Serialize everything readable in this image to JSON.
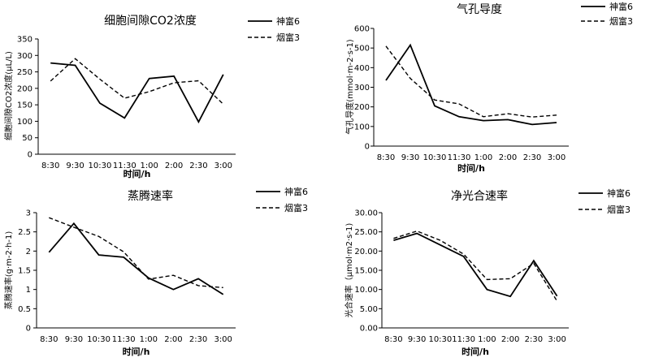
{
  "chart_data": [
    {
      "type": "line",
      "title": "细胞间隙CO2浓度",
      "xlabel": "时间/h",
      "ylabel": "细胞间隙CO2浓度(μL/L)",
      "categories": [
        "8:30",
        "9:30",
        "10:30",
        "11:30",
        "1:00",
        "2:00",
        "2:30",
        "3:00"
      ],
      "ylim": [
        0,
        350
      ],
      "ytick_step": 50,
      "ytick_labels": [
        "0",
        "50",
        "100",
        "150",
        "200",
        "250",
        "300",
        "350"
      ],
      "legend_position": "top-right",
      "series": [
        {
          "name": "神富6",
          "style": "solid",
          "values": [
            277,
            270,
            155,
            110,
            230,
            237,
            98,
            242
          ]
        },
        {
          "name": "烟富3",
          "style": "dashed",
          "values": [
            222,
            290,
            228,
            170,
            190,
            217,
            223,
            152
          ]
        }
      ]
    },
    {
      "type": "line",
      "title": "气孔导度",
      "xlabel": "时间/h",
      "ylabel": "气孔导度(mmol·m-2·s-1)",
      "categories": [
        "8:30",
        "9:30",
        "10:30",
        "11:30",
        "1:00",
        "2:00",
        "2:30",
        "3:00"
      ],
      "ylim": [
        0,
        600
      ],
      "ytick_step": 100,
      "ytick_labels": [
        "0",
        "100",
        "200",
        "300",
        "400",
        "500",
        "600"
      ],
      "legend_position": "top-right",
      "series": [
        {
          "name": "神富6",
          "style": "solid",
          "values": [
            335,
            515,
            205,
            150,
            130,
            135,
            110,
            120
          ]
        },
        {
          "name": "烟富3",
          "style": "dashed",
          "values": [
            510,
            345,
            235,
            215,
            150,
            165,
            148,
            158
          ]
        }
      ]
    },
    {
      "type": "line",
      "title": "蒸腾速率",
      "xlabel": "时间/h",
      "ylabel": "蒸腾速率(g·m-2·h-1)",
      "categories": [
        "8:30",
        "9:30",
        "10:30",
        "11:30",
        "1:00",
        "2:00",
        "2:30",
        "3:00"
      ],
      "ylim": [
        0,
        3
      ],
      "ytick_step": 0.5,
      "ytick_labels": [
        "0",
        "0.5",
        "1",
        "1.5",
        "2",
        "2.5",
        "3"
      ],
      "legend_position": "top-right",
      "series": [
        {
          "name": "神富6",
          "style": "solid",
          "values": [
            1.97,
            2.72,
            1.9,
            1.84,
            1.3,
            1.0,
            1.28,
            0.87
          ]
        },
        {
          "name": "烟富3",
          "style": "dashed",
          "values": [
            2.87,
            2.62,
            2.38,
            1.98,
            1.27,
            1.37,
            1.1,
            1.05
          ]
        }
      ]
    },
    {
      "type": "line",
      "title": "净光合速率",
      "xlabel": "时间/h",
      "ylabel": "光合速率（μmol·m2·s-1)",
      "categories": [
        "8:30",
        "9:30",
        "10:30",
        "11:30",
        "1:00",
        "2:00",
        "2:30",
        "3:00"
      ],
      "ylim": [
        0,
        30
      ],
      "ytick_step": 5,
      "ytick_labels": [
        "0.00",
        "5.00",
        "10.00",
        "15.00",
        "20.00",
        "25.00",
        "30.00"
      ],
      "legend_position": "top-right",
      "series": [
        {
          "name": "神富6",
          "style": "solid",
          "values": [
            22.8,
            24.6,
            21.6,
            18.6,
            10.0,
            8.2,
            17.5,
            8.3
          ]
        },
        {
          "name": "烟富3",
          "style": "dashed",
          "values": [
            23.3,
            25.2,
            22.8,
            19.2,
            12.6,
            12.8,
            16.8,
            7.0
          ]
        }
      ]
    }
  ]
}
